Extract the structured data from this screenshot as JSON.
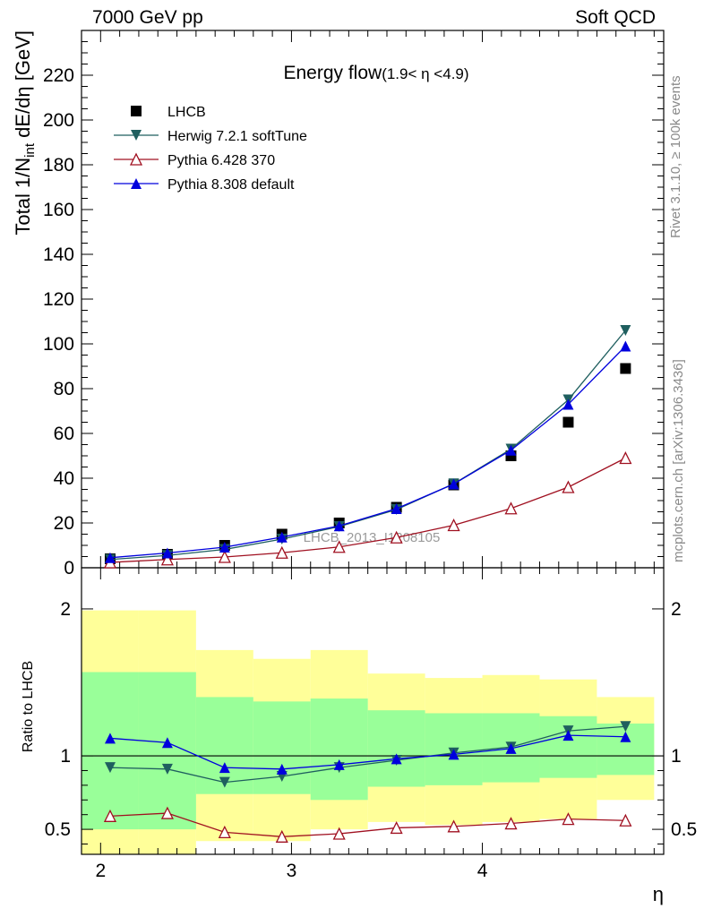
{
  "header": {
    "left": "7000 GeV pp",
    "right": "Soft QCD"
  },
  "side_labels": {
    "rivet": "Rivet 3.1.10, ≥ 100k events",
    "source": "mcplots.cern.ch [arXiv:1306.3436]"
  },
  "chart_data": [
    {
      "type": "scatter",
      "title": "Energy flow",
      "title_range": "(1.9< η <4.9)",
      "ylabel": "Total 1/N_int dE/dη [GeV]",
      "xlabel": "η",
      "watermark": "LHCB_2013_I1208105",
      "xlim": [
        1.9,
        4.95
      ],
      "ylim": [
        0,
        240
      ],
      "yticks": [
        0,
        20,
        40,
        60,
        80,
        100,
        120,
        140,
        160,
        180,
        200,
        220
      ],
      "xticks": [
        2,
        3,
        4
      ],
      "legend_position": "top-left",
      "x": [
        2.05,
        2.35,
        2.65,
        2.95,
        3.25,
        3.55,
        3.85,
        4.15,
        4.45,
        4.75
      ],
      "series": [
        {
          "name": "LHCB",
          "marker": "square",
          "color": "#000000",
          "values": [
            4.0,
            6.0,
            10.0,
            15.0,
            20.0,
            27.0,
            37.0,
            50.0,
            65.0,
            89.0
          ]
        },
        {
          "name": "Herwig 7.2.1 softTune",
          "marker": "triangle-down",
          "color": "#1f5f5f",
          "values": [
            3.7,
            5.5,
            8.2,
            12.8,
            18.4,
            26.0,
            37.5,
            53.0,
            75.0,
            106.0
          ]
        },
        {
          "name": "Pythia 6.428 370",
          "marker": "triangle-up-open",
          "color": "#a01020",
          "values": [
            2.4,
            3.7,
            4.8,
            6.7,
            9.3,
            13.5,
            19.0,
            26.5,
            36.0,
            49.0
          ]
        },
        {
          "name": "Pythia 8.308 default",
          "marker": "triangle-up",
          "color": "#0000dd",
          "values": [
            4.5,
            6.6,
            9.2,
            13.7,
            18.7,
            26.4,
            37.4,
            52.5,
            73.0,
            99.0
          ]
        }
      ]
    },
    {
      "type": "line",
      "ylabel": "Ratio to LHCB",
      "xlabel": "η",
      "xlim": [
        1.9,
        4.95
      ],
      "ylim": [
        0.33,
        2.28
      ],
      "ytick_labels": [
        "0.5",
        "1",
        "2"
      ],
      "xtick_labels": [
        "2",
        "3",
        "4"
      ],
      "reference_line": 1,
      "bin_edges": [
        1.9,
        2.2,
        2.5,
        2.8,
        3.1,
        3.4,
        3.7,
        4.0,
        4.3,
        4.6,
        4.9
      ],
      "band_inner": {
        "color": "#99ff99",
        "low": [
          0.5,
          0.5,
          0.74,
          0.74,
          0.7,
          0.79,
          0.8,
          0.82,
          0.85,
          0.87
        ],
        "high": [
          1.57,
          1.57,
          1.4,
          1.37,
          1.39,
          1.31,
          1.29,
          1.29,
          1.27,
          1.22
        ]
      },
      "band_outer": {
        "color": "#ffff99",
        "low": [
          0.33,
          0.33,
          0.42,
          0.42,
          0.5,
          0.55,
          0.53,
          0.55,
          0.57,
          0.7
        ],
        "high": [
          1.99,
          1.99,
          1.72,
          1.66,
          1.72,
          1.56,
          1.53,
          1.55,
          1.52,
          1.4
        ]
      },
      "x": [
        2.05,
        2.35,
        2.65,
        2.95,
        3.25,
        3.55,
        3.85,
        4.15,
        4.45,
        4.75
      ],
      "series": [
        {
          "name": "Herwig 7.2.1 softTune",
          "marker": "triangle-down",
          "color": "#1f5f5f",
          "values": [
            0.92,
            0.91,
            0.82,
            0.86,
            0.92,
            0.97,
            1.02,
            1.06,
            1.17,
            1.2
          ]
        },
        {
          "name": "Pythia 6.428 370",
          "marker": "triangle-up-open",
          "color": "#a01020",
          "values": [
            0.59,
            0.61,
            0.48,
            0.45,
            0.47,
            0.51,
            0.52,
            0.54,
            0.57,
            0.56
          ]
        },
        {
          "name": "Pythia 8.308 default",
          "marker": "triangle-up",
          "color": "#0000dd",
          "values": [
            1.12,
            1.09,
            0.92,
            0.91,
            0.94,
            0.98,
            1.01,
            1.05,
            1.14,
            1.13
          ]
        }
      ]
    }
  ]
}
